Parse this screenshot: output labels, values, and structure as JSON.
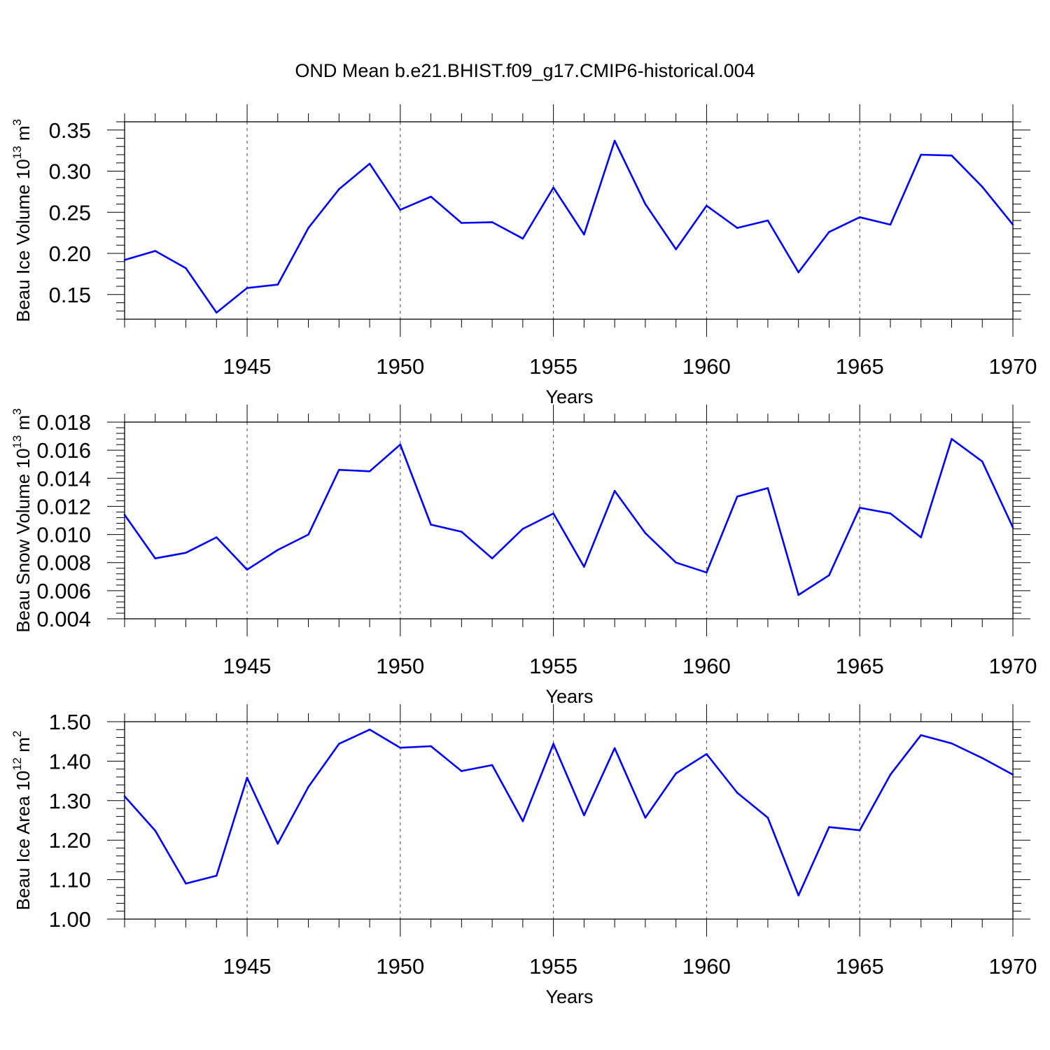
{
  "title": "OND Mean b.e21.BHIST.f09_g17.CMIP6-historical.004",
  "line_color": "#0000ff",
  "chart_data": [
    {
      "type": "line",
      "ylabel": "Beau Ice Volume 10",
      "ylabel_exp": "13",
      "ylabel_unit": " m",
      "ylabel_unit_exp": "3",
      "xlabel": "Years",
      "xlim": [
        1941,
        1970
      ],
      "ylim": [
        0.12,
        0.36
      ],
      "yticks": [
        "0.15",
        "0.20",
        "0.25",
        "0.30",
        "0.35"
      ],
      "ytick_values": [
        0.15,
        0.2,
        0.25,
        0.3,
        0.35
      ],
      "xticks": [
        "1945",
        "1950",
        "1955",
        "1960",
        "1965",
        "1970"
      ],
      "xtick_values": [
        1945,
        1950,
        1955,
        1960,
        1965,
        1970
      ],
      "x": [
        1941,
        1942,
        1943,
        1944,
        1945,
        1946,
        1947,
        1948,
        1949,
        1950,
        1951,
        1952,
        1953,
        1954,
        1955,
        1956,
        1957,
        1958,
        1959,
        1960,
        1961,
        1962,
        1963,
        1964,
        1965,
        1966,
        1967,
        1968,
        1969,
        1970
      ],
      "values": [
        0.192,
        0.203,
        0.182,
        0.128,
        0.158,
        0.162,
        0.231,
        0.278,
        0.309,
        0.253,
        0.269,
        0.237,
        0.238,
        0.218,
        0.28,
        0.223,
        0.337,
        0.26,
        0.205,
        0.258,
        0.231,
        0.24,
        0.177,
        0.226,
        0.244,
        0.235,
        0.32,
        0.319,
        0.281,
        0.235
      ]
    },
    {
      "type": "line",
      "ylabel": "Beau Snow Volume 10",
      "ylabel_exp": "13",
      "ylabel_unit": " m",
      "ylabel_unit_exp": "3",
      "xlabel": "Years",
      "xlim": [
        1941,
        1970
      ],
      "ylim": [
        0.004,
        0.018
      ],
      "yticks": [
        "0.004",
        "0.006",
        "0.008",
        "0.010",
        "0.012",
        "0.014",
        "0.016",
        "0.018"
      ],
      "ytick_values": [
        0.004,
        0.006,
        0.008,
        0.01,
        0.012,
        0.014,
        0.016,
        0.018
      ],
      "xticks": [
        "1945",
        "1950",
        "1955",
        "1960",
        "1965",
        "1970"
      ],
      "xtick_values": [
        1945,
        1950,
        1955,
        1960,
        1965,
        1970
      ],
      "x": [
        1941,
        1942,
        1943,
        1944,
        1945,
        1946,
        1947,
        1948,
        1949,
        1950,
        1951,
        1952,
        1953,
        1954,
        1955,
        1956,
        1957,
        1958,
        1959,
        1960,
        1961,
        1962,
        1963,
        1964,
        1965,
        1966,
        1967,
        1968,
        1969,
        1970
      ],
      "values": [
        0.0114,
        0.0083,
        0.0087,
        0.0098,
        0.0075,
        0.0089,
        0.01,
        0.0146,
        0.0145,
        0.0164,
        0.0107,
        0.0102,
        0.0083,
        0.0104,
        0.0115,
        0.0077,
        0.0131,
        0.0101,
        0.008,
        0.0073,
        0.0127,
        0.0133,
        0.0057,
        0.0071,
        0.0119,
        0.0115,
        0.0098,
        0.0168,
        0.0152,
        0.0105
      ]
    },
    {
      "type": "line",
      "ylabel": "Beau Ice Area 10",
      "ylabel_exp": "12",
      "ylabel_unit": " m",
      "ylabel_unit_exp": "2",
      "xlabel": "Years",
      "xlim": [
        1941,
        1970
      ],
      "ylim": [
        1.0,
        1.5
      ],
      "yticks": [
        "1.00",
        "1.10",
        "1.20",
        "1.30",
        "1.40",
        "1.50"
      ],
      "ytick_values": [
        1.0,
        1.1,
        1.2,
        1.3,
        1.4,
        1.5
      ],
      "xticks": [
        "1945",
        "1950",
        "1955",
        "1960",
        "1965",
        "1970"
      ],
      "xtick_values": [
        1945,
        1950,
        1955,
        1960,
        1965,
        1970
      ],
      "x": [
        1941,
        1942,
        1943,
        1944,
        1945,
        1946,
        1947,
        1948,
        1949,
        1950,
        1951,
        1952,
        1953,
        1954,
        1955,
        1956,
        1957,
        1958,
        1959,
        1960,
        1961,
        1962,
        1963,
        1964,
        1965,
        1966,
        1967,
        1968,
        1969,
        1970
      ],
      "values": [
        1.311,
        1.224,
        1.09,
        1.11,
        1.358,
        1.191,
        1.335,
        1.444,
        1.48,
        1.434,
        1.438,
        1.375,
        1.39,
        1.248,
        1.444,
        1.263,
        1.433,
        1.257,
        1.369,
        1.418,
        1.32,
        1.257,
        1.06,
        1.233,
        1.225,
        1.366,
        1.466,
        1.445,
        1.408,
        1.366
      ]
    }
  ]
}
